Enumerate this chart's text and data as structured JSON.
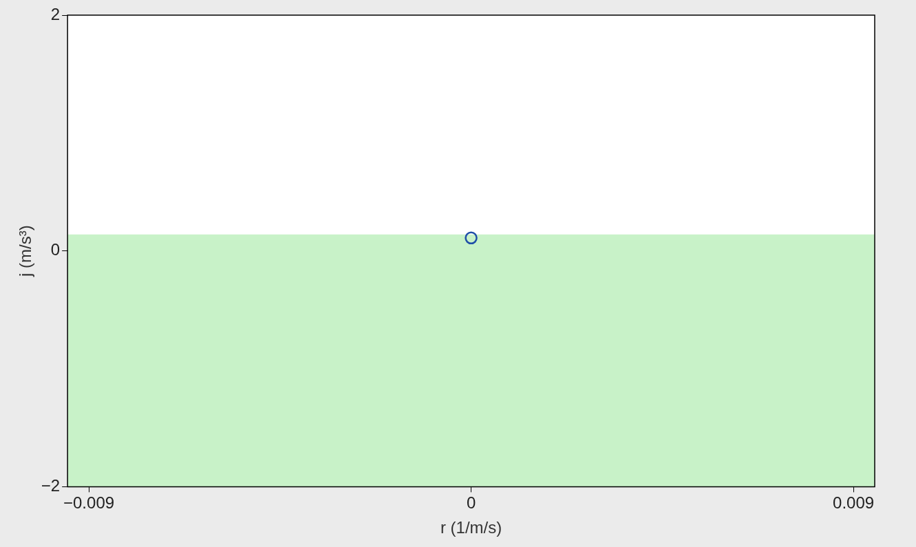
{
  "chart_data": {
    "type": "scatter",
    "xlabel": "r (1/m/s)",
    "ylabel": "j (m/s³)",
    "x": [
      0
    ],
    "series": [
      {
        "color": "#1f4fa8",
        "values": [
          0.11
        ]
      }
    ],
    "xlim": [
      -0.0095,
      0.0095
    ],
    "xticks": [
      -0.009,
      0,
      0.009
    ],
    "ylim": [
      -2,
      2
    ],
    "yticks": [
      -2,
      0,
      2
    ],
    "bands": [
      {
        "axis": "y",
        "from": -2,
        "to": 0.14,
        "color": "#c8f2c8"
      }
    ],
    "marker": "circle",
    "grid": false,
    "legend": false
  }
}
